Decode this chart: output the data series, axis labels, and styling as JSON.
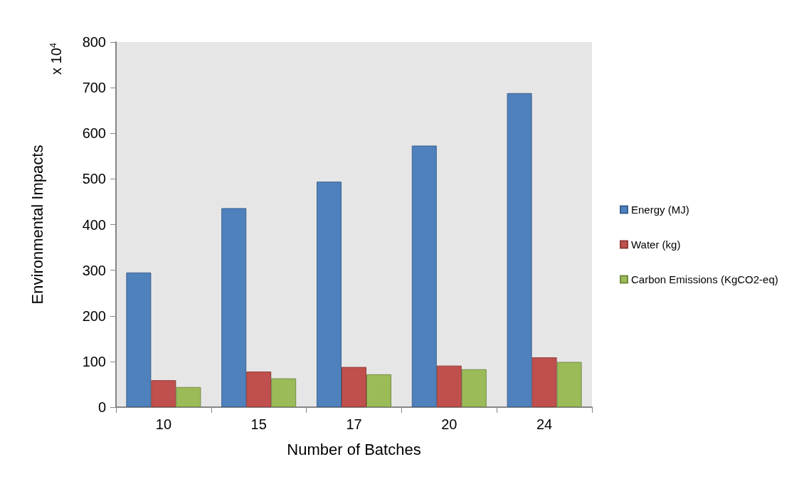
{
  "chart_data": {
    "type": "bar",
    "xlabel": "Number of Batches",
    "ylabel": "Environmental Impacts",
    "annotations": [
      "x 10$^{4}$"
    ],
    "categories": [
      "10",
      "15",
      "17",
      "20",
      "24"
    ],
    "series": [
      {
        "name": "Energy (MJ)",
        "color": "#4f81bd",
        "values": [
          295,
          436,
          494,
          573,
          688
        ]
      },
      {
        "name": "Water (kg)",
        "color": "#c0504d",
        "values": [
          59,
          78,
          88,
          91,
          109
        ]
      },
      {
        "name": "Carbon Emissions (KgCO2-eq)",
        "color": "#9bbb59",
        "values": [
          44,
          63,
          72,
          83,
          99
        ]
      }
    ],
    "ylim": [
      0,
      800
    ],
    "yticks": [
      0,
      100,
      200,
      300,
      400,
      500,
      600,
      700,
      800
    ],
    "grid": false,
    "legend": "right"
  }
}
